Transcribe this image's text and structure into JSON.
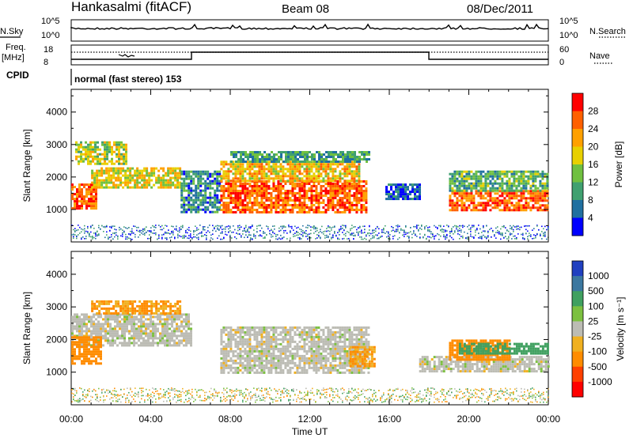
{
  "header": {
    "title": "Hankasalmi (fitACF)",
    "beam": "Beam 08",
    "date": "08/Dec/2011"
  },
  "strip1": {
    "left_label": "N.Sky",
    "right_label": "N.Search",
    "left_ticks": [
      "10^5",
      "10^0"
    ],
    "right_ticks": [
      "10^5",
      "10^0"
    ]
  },
  "strip2": {
    "left_label_line1": "Freq.",
    "left_label_line2": "[MHz]",
    "left_ticks": [
      "18",
      "8"
    ],
    "right_ticks": [
      "60",
      "0"
    ],
    "right_label": "Nave"
  },
  "cpid": {
    "label": "CPID",
    "text": "normal (fast stereo) 153"
  },
  "chart_data": [
    {
      "type": "heatmap",
      "panel": "power",
      "ylabel": "Slant Range [km]",
      "ylim": [
        0,
        4700
      ],
      "yticks": [
        1000,
        2000,
        3000,
        4000
      ],
      "xlim_hours": [
        0,
        24
      ],
      "colorbar": {
        "label": "Power [dB]",
        "ticks": [
          "28",
          "24",
          "20",
          "16",
          "12",
          "8",
          "4"
        ],
        "colors": [
          "#ff0000",
          "#ff6000",
          "#ffa000",
          "#e8d000",
          "#70c040",
          "#40a070",
          "#2070a0",
          "#0000ff"
        ]
      },
      "regions": [
        {
          "t": [
            0.0,
            1.2
          ],
          "r": [
            1000,
            1800
          ],
          "v": 28
        },
        {
          "t": [
            0.2,
            2.8
          ],
          "r": [
            2400,
            3100
          ],
          "v": 18
        },
        {
          "t": [
            1.0,
            5.5
          ],
          "r": [
            1700,
            2300
          ],
          "v": 20
        },
        {
          "t": [
            5.5,
            7.5
          ],
          "r": [
            900,
            2200
          ],
          "v": 10
        },
        {
          "t": [
            7.5,
            14.8
          ],
          "r": [
            900,
            1900
          ],
          "v": 28
        },
        {
          "t": [
            7.5,
            14.5
          ],
          "r": [
            1900,
            2500
          ],
          "v": 22
        },
        {
          "t": [
            8.0,
            15.0
          ],
          "r": [
            2500,
            2800
          ],
          "v": 12
        },
        {
          "t": [
            15.8,
            17.5
          ],
          "r": [
            1300,
            1800
          ],
          "v": 6
        },
        {
          "t": [
            19.0,
            24.0
          ],
          "r": [
            1000,
            1600
          ],
          "v": 28
        },
        {
          "t": [
            19.0,
            24.0
          ],
          "r": [
            1600,
            2200
          ],
          "v": 14
        }
      ]
    },
    {
      "type": "heatmap",
      "panel": "velocity",
      "ylabel": "Slant Range [km]",
      "ylim": [
        0,
        4700
      ],
      "yticks": [
        1000,
        2000,
        3000,
        4000
      ],
      "xlim_hours": [
        0,
        24
      ],
      "xticks": [
        "00:00",
        "04:00",
        "08:00",
        "12:00",
        "16:00",
        "20:00",
        "00:00"
      ],
      "xlabel": "Time UT",
      "colorbar": {
        "label": "Velocity [m s⁻¹]",
        "ticks": [
          "1000",
          "500",
          "100",
          "25",
          "-25",
          "-100",
          "-500",
          "-1000"
        ],
        "colors": [
          "#2040c0",
          "#3c78a0",
          "#40a060",
          "#7cc040",
          "#bcbcb4",
          "#f0b020",
          "#ff8c00",
          "#ff4000",
          "#ff0000"
        ]
      },
      "regions": [
        {
          "t": [
            0.0,
            6.0
          ],
          "r": [
            1800,
            2800
          ],
          "v": 0
        },
        {
          "t": [
            0.0,
            1.5
          ],
          "r": [
            1300,
            2100
          ],
          "v": -200
        },
        {
          "t": [
            1.0,
            5.5
          ],
          "r": [
            2800,
            3200
          ],
          "v": -100
        },
        {
          "t": [
            7.5,
            15.0
          ],
          "r": [
            1000,
            2400
          ],
          "v": 0
        },
        {
          "t": [
            14.0,
            15.2
          ],
          "r": [
            1200,
            1800
          ],
          "v": -100
        },
        {
          "t": [
            17.5,
            24.0
          ],
          "r": [
            1000,
            1500
          ],
          "v": 0
        },
        {
          "t": [
            19.0,
            22.0
          ],
          "r": [
            1400,
            2000
          ],
          "v": -200
        },
        {
          "t": [
            19.5,
            24.0
          ],
          "r": [
            1600,
            1900
          ],
          "v": 150
        }
      ]
    }
  ]
}
